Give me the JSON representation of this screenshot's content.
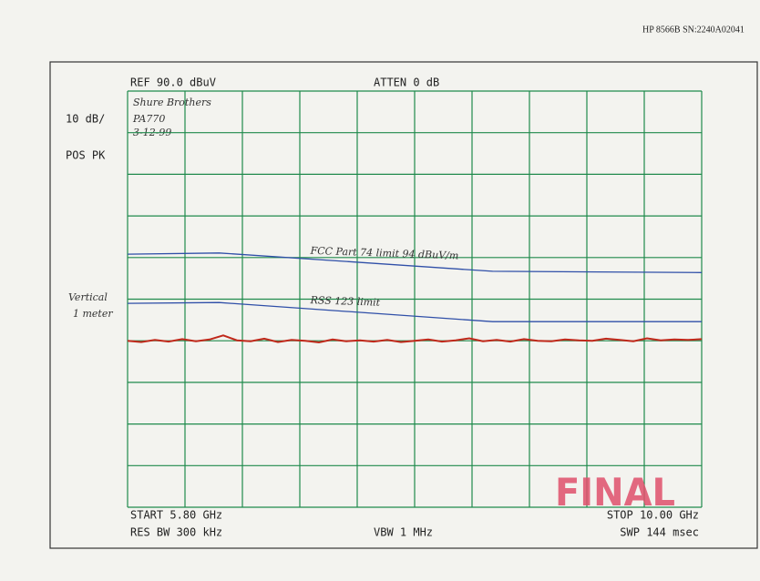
{
  "chart_data": {
    "type": "line",
    "instrument": "HP 8566B  SN:2240A02041",
    "ref_level": "REF  90.0 dBuV",
    "attenuation": "ATTEN 0 dB",
    "scale": "10 dB/",
    "detector": "POS PK",
    "start": "START 5.80 GHz",
    "stop": "STOP 10.00 GHz",
    "res_bw": "RES BW 300 kHz",
    "vbw": "VBW 1 MHz",
    "sweep": "SWP 144 msec",
    "notes": [
      "Shure Brothers",
      "PA770",
      "3-12-99"
    ],
    "side_notes": [
      "Vertical",
      "1 meter"
    ],
    "stamp": "FINAL",
    "xlim": [
      5.8,
      10.0
    ],
    "ylim": [
      -10,
      90
    ],
    "xticks": [
      5.8,
      6.22,
      6.64,
      7.06,
      7.48,
      7.9,
      8.32,
      8.74,
      9.16,
      9.58,
      10.0
    ],
    "yticks": [
      -10,
      0,
      10,
      20,
      30,
      40,
      50,
      60,
      70,
      80,
      90
    ],
    "grid": true,
    "grid_color": "#1f8a4c",
    "series": [
      {
        "name": "FCC Part 74 limit 94 dBuV/m",
        "color": "#2f4fa8",
        "x": [
          5.8,
          6.47,
          8.47,
          10.0
        ],
        "values": [
          50.8,
          51.1,
          46.7,
          46.4
        ]
      },
      {
        "name": "RSS 123 limit",
        "color": "#2f4fa8",
        "x": [
          5.8,
          6.47,
          8.47,
          10.0
        ],
        "values": [
          39.0,
          39.2,
          34.6,
          34.6
        ]
      },
      {
        "color": "#c0281a",
        "x": [
          5.8,
          5.9,
          6.0,
          6.1,
          6.2,
          6.3,
          6.4,
          6.5,
          6.6,
          6.7,
          6.8,
          6.9,
          7.0,
          7.1,
          7.2,
          7.3,
          7.4,
          7.5,
          7.6,
          7.7,
          7.8,
          7.9,
          8.0,
          8.1,
          8.2,
          8.3,
          8.4,
          8.5,
          8.6,
          8.7,
          8.8,
          8.9,
          9.0,
          9.1,
          9.2,
          9.3,
          9.4,
          9.5,
          9.6,
          9.7,
          9.8,
          9.9,
          10.0
        ],
        "values": [
          30.0,
          29.7,
          30.2,
          29.8,
          30.4,
          29.9,
          30.3,
          31.3,
          30.1,
          29.9,
          30.5,
          29.7,
          30.2,
          30.0,
          29.6,
          30.3,
          29.9,
          30.1,
          29.8,
          30.2,
          29.7,
          30.0,
          30.3,
          29.8,
          30.1,
          30.6,
          29.9,
          30.2,
          29.8,
          30.4,
          30.0,
          29.9,
          30.3,
          30.1,
          30.0,
          30.5,
          30.2,
          29.9,
          30.6,
          30.1,
          30.3,
          30.2,
          30.4
        ]
      }
    ]
  }
}
